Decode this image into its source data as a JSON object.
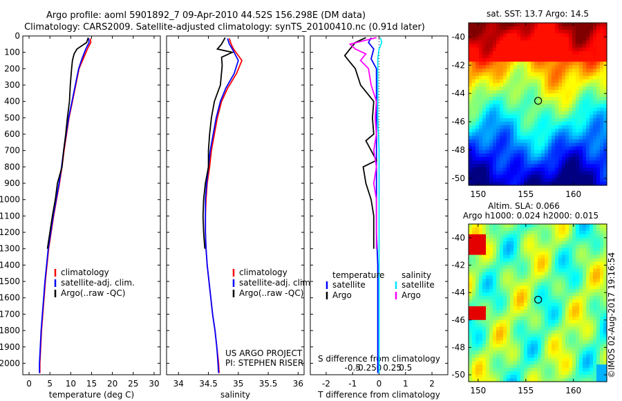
{
  "header": {
    "line1": "Argo profile: aoml 5901892_7 09-Apr-2010 44.52S 156.298E (DM data)",
    "line2": "Climatology: CARS2009. Satellite-adjusted climatology: synTS_20100410.nc (0.91d later)"
  },
  "side_stamp": "©IMOS 02-Aug-2017 19:16:54",
  "colors": {
    "climatology": "#ff0000",
    "satellite": "#0000ff",
    "argo": "#000000",
    "sal_satellite": "#00e5ff",
    "sal_argo": "#ff00ff"
  },
  "chart_data": [
    {
      "type": "line",
      "panel": "temperature",
      "xlabel": "temperature (deg C)",
      "xlim": [
        -1.5,
        31.5
      ],
      "xticks": [
        0,
        5,
        10,
        15,
        20,
        25,
        30
      ],
      "ylim": [
        2070,
        0
      ],
      "yticks": [
        0,
        100,
        200,
        300,
        400,
        500,
        600,
        700,
        800,
        900,
        1000,
        1100,
        1200,
        1300,
        1400,
        1500,
        1600,
        1700,
        1800,
        1900,
        2000
      ],
      "legend": [
        "climatology",
        "satellite-adj. clim.",
        "Argo(..raw -QC)"
      ],
      "series": [
        {
          "name": "climatology",
          "color": "#ff0000",
          "points": [
            [
              14.7,
              15
            ],
            [
              14.8,
              40
            ],
            [
              14.0,
              80
            ],
            [
              13.0,
              140
            ],
            [
              12.0,
              200
            ],
            [
              11.2,
              300
            ],
            [
              10.4,
              400
            ],
            [
              9.6,
              500
            ],
            [
              9.0,
              600
            ],
            [
              8.4,
              700
            ],
            [
              7.9,
              800
            ],
            [
              7.3,
              900
            ],
            [
              6.6,
              1000
            ],
            [
              5.9,
              1100
            ],
            [
              5.3,
              1200
            ],
            [
              4.7,
              1300
            ],
            [
              4.3,
              1400
            ],
            [
              3.9,
              1500
            ],
            [
              3.6,
              1600
            ],
            [
              3.3,
              1700
            ],
            [
              3.0,
              1800
            ],
            [
              2.8,
              1900
            ],
            [
              2.6,
              2000
            ],
            [
              2.6,
              2060
            ]
          ]
        },
        {
          "name": "satellite-adj. clim.",
          "color": "#0000ff",
          "points": [
            [
              14.3,
              15
            ],
            [
              14.4,
              40
            ],
            [
              13.6,
              80
            ],
            [
              12.7,
              140
            ],
            [
              11.9,
              200
            ],
            [
              11.1,
              300
            ],
            [
              10.3,
              400
            ],
            [
              9.5,
              500
            ],
            [
              8.9,
              600
            ],
            [
              8.3,
              700
            ],
            [
              7.8,
              800
            ],
            [
              7.2,
              900
            ],
            [
              6.5,
              1000
            ],
            [
              5.8,
              1100
            ],
            [
              5.2,
              1200
            ],
            [
              4.6,
              1300
            ],
            [
              4.2,
              1400
            ],
            [
              3.8,
              1500
            ],
            [
              3.5,
              1600
            ],
            [
              3.2,
              1700
            ],
            [
              2.9,
              1800
            ],
            [
              2.7,
              1900
            ],
            [
              2.5,
              2000
            ],
            [
              2.5,
              2060
            ]
          ]
        },
        {
          "name": "Argo(..raw -QC)",
          "color": "#000000",
          "points": [
            [
              14.2,
              10
            ],
            [
              13.8,
              40
            ],
            [
              11.5,
              80
            ],
            [
              10.8,
              110
            ],
            [
              10.4,
              150
            ],
            [
              10.2,
              200
            ],
            [
              9.9,
              300
            ],
            [
              9.7,
              400
            ],
            [
              9.2,
              500
            ],
            [
              8.8,
              600
            ],
            [
              8.3,
              700
            ],
            [
              7.9,
              800
            ],
            [
              6.8,
              900
            ],
            [
              6.3,
              1000
            ],
            [
              5.6,
              1100
            ],
            [
              5.0,
              1200
            ],
            [
              4.4,
              1300
            ]
          ]
        }
      ]
    },
    {
      "type": "line",
      "panel": "salinity",
      "xlabel": "salinity",
      "xlim": [
        33.8,
        36.1
      ],
      "xticks": [
        34,
        34.5,
        35,
        35.5,
        36
      ],
      "ylim": [
        2070,
        0
      ],
      "legend": [
        "climatology",
        "satellite-adj. clim.",
        "Argo(..raw -QC)"
      ],
      "annotation": [
        "US ARGO PROJECT",
        "PI: STEPHEN RISER"
      ],
      "series": [
        {
          "name": "climatology",
          "color": "#ff0000",
          "points": [
            [
              34.85,
              15
            ],
            [
              34.88,
              50
            ],
            [
              34.92,
              80
            ],
            [
              35.06,
              150
            ],
            [
              34.97,
              230
            ],
            [
              34.82,
              320
            ],
            [
              34.72,
              400
            ],
            [
              34.65,
              500
            ],
            [
              34.6,
              600
            ],
            [
              34.55,
              700
            ],
            [
              34.52,
              800
            ],
            [
              34.48,
              900
            ],
            [
              34.46,
              1000
            ],
            [
              34.45,
              1100
            ],
            [
              34.45,
              1200
            ],
            [
              34.46,
              1300
            ],
            [
              34.48,
              1400
            ],
            [
              34.51,
              1500
            ],
            [
              34.54,
              1600
            ],
            [
              34.57,
              1700
            ],
            [
              34.61,
              1800
            ],
            [
              34.64,
              1900
            ],
            [
              34.67,
              2000
            ],
            [
              34.68,
              2060
            ]
          ]
        },
        {
          "name": "satellite-adj. clim.",
          "color": "#0000ff",
          "points": [
            [
              34.82,
              15
            ],
            [
              34.85,
              50
            ],
            [
              34.9,
              80
            ],
            [
              35.0,
              150
            ],
            [
              34.93,
              230
            ],
            [
              34.79,
              320
            ],
            [
              34.7,
              400
            ],
            [
              34.63,
              500
            ],
            [
              34.58,
              600
            ],
            [
              34.53,
              700
            ],
            [
              34.5,
              800
            ],
            [
              34.47,
              900
            ],
            [
              34.45,
              1000
            ],
            [
              34.45,
              1100
            ],
            [
              34.45,
              1200
            ],
            [
              34.46,
              1300
            ],
            [
              34.48,
              1400
            ],
            [
              34.51,
              1500
            ],
            [
              34.54,
              1600
            ],
            [
              34.57,
              1700
            ],
            [
              34.61,
              1800
            ],
            [
              34.64,
              1900
            ],
            [
              34.66,
              2000
            ],
            [
              34.67,
              2060
            ]
          ]
        },
        {
          "name": "Argo(..raw -QC)",
          "color": "#000000",
          "points": [
            [
              34.78,
              10
            ],
            [
              34.72,
              50
            ],
            [
              34.65,
              80
            ],
            [
              34.9,
              100
            ],
            [
              34.72,
              130
            ],
            [
              34.73,
              180
            ],
            [
              34.7,
              300
            ],
            [
              34.6,
              400
            ],
            [
              34.55,
              500
            ],
            [
              34.52,
              600
            ],
            [
              34.5,
              700
            ],
            [
              34.5,
              800
            ],
            [
              34.45,
              900
            ],
            [
              34.42,
              1000
            ],
            [
              34.41,
              1100
            ],
            [
              34.42,
              1200
            ],
            [
              34.44,
              1300
            ]
          ]
        }
      ]
    },
    {
      "type": "line",
      "panel": "difference",
      "xlabel": "T difference from climatology",
      "xlabel_top": "S difference from climatology",
      "xlim": [
        -2.6,
        2.6
      ],
      "xticks": [
        -2,
        -1,
        0,
        1,
        2
      ],
      "sticks_label": [
        "-0.5",
        "-0.25",
        "0",
        "0.25",
        "0.5"
      ],
      "ylim": [
        2070,
        0
      ],
      "legend": {
        "temperature": [
          "satellite",
          "Argo"
        ],
        "salinity": [
          "satellite",
          "Argo"
        ]
      },
      "series": [
        {
          "name": "temperature satellite",
          "color": "#0000ff",
          "points": [
            [
              -0.3,
              10
            ],
            [
              -0.4,
              40
            ],
            [
              -0.2,
              80
            ],
            [
              -0.3,
              140
            ],
            [
              -0.1,
              200
            ],
            [
              -0.1,
              300
            ],
            [
              -0.1,
              400
            ],
            [
              -0.1,
              500
            ],
            [
              -0.1,
              600
            ],
            [
              -0.1,
              700
            ],
            [
              -0.1,
              800
            ],
            [
              -0.1,
              900
            ],
            [
              -0.1,
              1000
            ],
            [
              -0.1,
              1200
            ],
            [
              -0.05,
              1400
            ],
            [
              -0.05,
              1600
            ],
            [
              -0.05,
              1800
            ],
            [
              -0.05,
              2000
            ],
            [
              -0.05,
              2060
            ]
          ]
        },
        {
          "name": "temperature Argo",
          "color": "#000000",
          "points": [
            [
              -0.5,
              10
            ],
            [
              -0.9,
              40
            ],
            [
              -1.1,
              80
            ],
            [
              -1.3,
              120
            ],
            [
              -1.1,
              160
            ],
            [
              -0.9,
              200
            ],
            [
              -0.7,
              300
            ],
            [
              -0.2,
              400
            ],
            [
              -0.25,
              500
            ],
            [
              -0.2,
              600
            ],
            [
              -0.5,
              640
            ],
            [
              -0.3,
              700
            ],
            [
              -0.1,
              760
            ],
            [
              -0.6,
              800
            ],
            [
              -0.5,
              900
            ],
            [
              -0.3,
              1000
            ],
            [
              -0.2,
              1100
            ],
            [
              -0.2,
              1200
            ],
            [
              -0.2,
              1300
            ]
          ]
        },
        {
          "name": "salinity satellite",
          "color": "#00e5ff",
          "points": [
            [
              0.05,
              10
            ],
            [
              0.1,
              40
            ],
            [
              0.0,
              80
            ],
            [
              -0.05,
              140
            ],
            [
              -0.05,
              200
            ],
            [
              -0.05,
              300
            ],
            [
              -0.05,
              500
            ],
            [
              0.0,
              700
            ],
            [
              0.0,
              900
            ],
            [
              0.0,
              1100
            ],
            [
              0.0,
              1300
            ],
            [
              0.0,
              1500
            ],
            [
              0.0,
              1700
            ],
            [
              0.0,
              1900
            ],
            [
              0.0,
              2060
            ]
          ]
        },
        {
          "name": "salinity Argo",
          "color": "#ff00ff",
          "points": [
            [
              -0.1,
              10
            ],
            [
              -1.1,
              50
            ],
            [
              -0.9,
              80
            ],
            [
              -0.5,
              110
            ],
            [
              -0.7,
              150
            ],
            [
              -0.4,
              200
            ],
            [
              -0.3,
              300
            ],
            [
              -0.1,
              400
            ],
            [
              -0.15,
              500
            ],
            [
              -0.1,
              600
            ],
            [
              -0.2,
              700
            ],
            [
              -0.1,
              800
            ],
            [
              -0.2,
              900
            ],
            [
              -0.1,
              1000
            ],
            [
              -0.1,
              1100
            ],
            [
              -0.1,
              1200
            ],
            [
              -0.1,
              1300
            ]
          ]
        }
      ]
    },
    {
      "type": "heatmap",
      "panel": "sst-map",
      "title": "sat. SST: 13.7 Argo: 14.5",
      "xticks": [
        150,
        155,
        160
      ],
      "yticks": [
        -40,
        -42,
        -44,
        -46,
        -48,
        -50
      ],
      "xlim": [
        149,
        163.5
      ],
      "ylim": [
        -50.5,
        -39
      ],
      "marker": [
        156.298,
        -44.52
      ]
    },
    {
      "type": "heatmap",
      "panel": "sla-map",
      "title": "Altim. SLA: 0.066",
      "subtitle": "Argo h1000: 0.024 h2000: 0.015",
      "xticks": [
        150,
        155,
        160
      ],
      "yticks": [
        -40,
        -42,
        -44,
        -46,
        -48,
        -50
      ],
      "xlim": [
        149,
        163.5
      ],
      "ylim": [
        -50.5,
        -39
      ],
      "marker": [
        156.298,
        -44.52
      ]
    }
  ]
}
